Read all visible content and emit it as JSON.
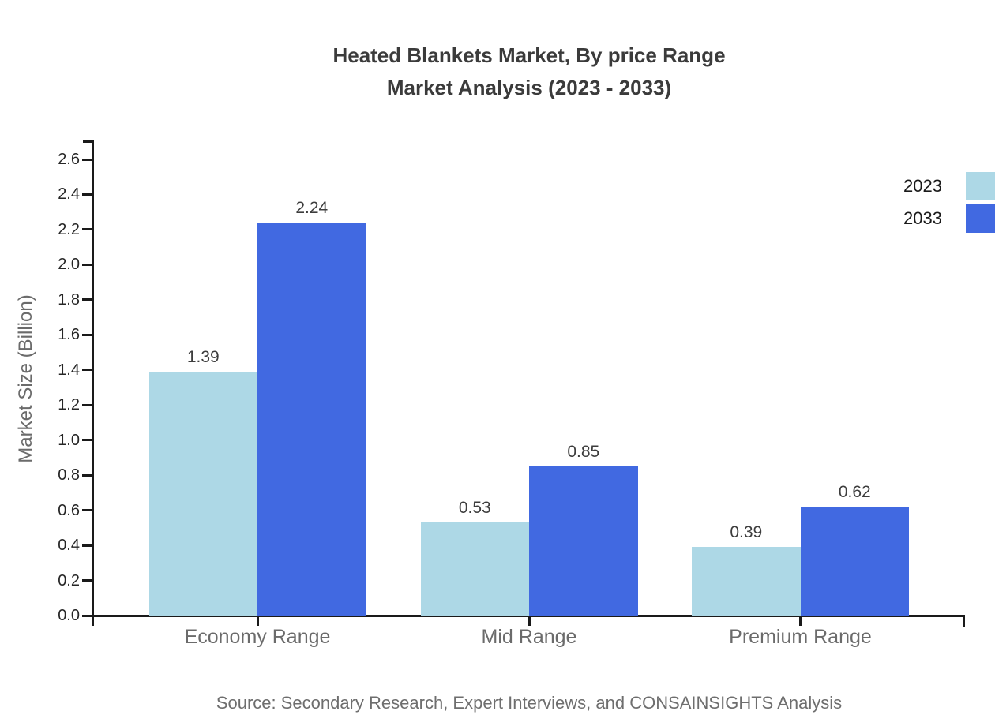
{
  "chart_data": {
    "type": "bar",
    "title": "Heated Blankets Market, By price Range",
    "subtitle": "Market Analysis (2023 - 2033)",
    "ylabel": "Market Size (Billion)",
    "xlabel": "",
    "categories": [
      "Economy Range",
      "Mid Range",
      "Premium Range"
    ],
    "series": [
      {
        "name": "2023",
        "color": "#ADD8E6",
        "values": [
          1.39,
          0.53,
          0.39
        ]
      },
      {
        "name": "2033",
        "color": "#4169E1",
        "values": [
          2.24,
          0.85,
          0.62
        ]
      }
    ],
    "ylim": [
      0,
      2.6
    ],
    "ytick_step": 0.2,
    "yticks": [
      "0.0",
      "0.2",
      "0.4",
      "0.6",
      "0.8",
      "1.0",
      "1.2",
      "1.4",
      "1.6",
      "1.8",
      "2.0",
      "2.2",
      "2.4",
      "2.6"
    ],
    "grid": false,
    "legend_position": "top-right",
    "value_labels": [
      "1.39",
      "2.24",
      "0.53",
      "0.85",
      "0.39",
      "0.62"
    ],
    "source": "Source: Secondary Research, Expert Interviews, and CONSAINSIGHTS Analysis"
  }
}
